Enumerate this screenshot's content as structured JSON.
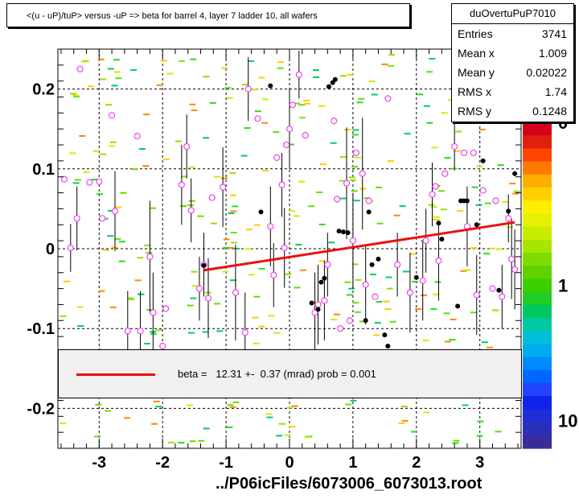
{
  "title": "<(u - uP)/tuP> versus  -uP => beta for barrel 4, layer 7 ladder 10, all wafers",
  "stats": {
    "name": "duOvertuPuP7010",
    "rows": [
      {
        "key": "Entries",
        "value": "3741"
      },
      {
        "key": "Mean x",
        "value": "1.009"
      },
      {
        "key": "Mean y",
        "value": "0.02022"
      },
      {
        "key": "RMS x",
        "value": "1.74"
      },
      {
        "key": "RMS y",
        "value": "0.1248"
      }
    ]
  },
  "legend": {
    "text": "beta =   12.31 +-  0.37 (mrad) prob = 0.001",
    "color": "#e8120f"
  },
  "footer": "../P06icFiles/6073006_6073013.root",
  "colors": {
    "fit": "#e8120f",
    "profile_marker": "#ee44ee",
    "dots": "#000000"
  },
  "chart_data": {
    "type": "scatter",
    "xlim": [
      -3.65,
      3.65
    ],
    "ylim": [
      -0.25,
      0.25
    ],
    "x_ticks": [
      -3,
      -2,
      -1,
      0,
      1,
      2,
      3
    ],
    "x_tick_labels": [
      "-3",
      "-2",
      "-1",
      "0",
      "1",
      "2",
      "3"
    ],
    "y_ticks": [
      -0.2,
      -0.1,
      0,
      0.1,
      0.2
    ],
    "y_tick_labels": [
      "-0.2",
      "-0.1",
      "0",
      "0.1",
      "0.2"
    ],
    "grid": true,
    "colz_labels": [
      {
        "text": "0",
        "y": 0.7
      },
      {
        "text": "1",
        "y": 0.0
      },
      {
        "text": "10",
        "y": -0.58
      }
    ],
    "fit_line": {
      "x": [
        -1.35,
        3.55
      ],
      "y": [
        -0.027,
        0.033
      ]
    },
    "profile_points": [
      {
        "x": -3.55,
        "y": 0.087
      },
      {
        "x": -3.45,
        "y": 0.001,
        "err": 0.03
      },
      {
        "x": -3.35,
        "y": 0.038,
        "err": 0.04
      },
      {
        "x": -3.3,
        "y": 0.225
      },
      {
        "x": -3.15,
        "y": 0.083
      },
      {
        "x": -3.0,
        "y": 0.084
      },
      {
        "x": -2.95,
        "y": 0.038
      },
      {
        "x": -2.8,
        "y": 0.167
      },
      {
        "x": -2.75,
        "y": 0.047,
        "err": 0.05
      },
      {
        "x": -2.55,
        "y": -0.103,
        "err": 0.05
      },
      {
        "x": -2.4,
        "y": 0.141
      },
      {
        "x": -2.35,
        "y": -0.103,
        "err": 0.05
      },
      {
        "x": -2.2,
        "y": -0.01,
        "err": 0.07
      },
      {
        "x": -2.15,
        "y": -0.08,
        "err": 0.05
      },
      {
        "x": -2.0,
        "y": -0.122
      },
      {
        "x": -1.95,
        "y": -0.075
      },
      {
        "x": -1.7,
        "y": 0.08,
        "err": 0.05
      },
      {
        "x": -1.62,
        "y": 0.128,
        "err": 0.04
      },
      {
        "x": -1.55,
        "y": 0.048,
        "err": 0.04
      },
      {
        "x": -1.42,
        "y": -0.05,
        "err": 0.04
      },
      {
        "x": -1.35,
        "y": -0.02,
        "err": 0.04
      },
      {
        "x": -1.28,
        "y": -0.062,
        "err": 0.05
      },
      {
        "x": -1.22,
        "y": 0.064
      },
      {
        "x": -1.05,
        "y": 0.077,
        "err": 0.05
      },
      {
        "x": -0.85,
        "y": -0.055,
        "err": 0.06
      },
      {
        "x": -0.7,
        "y": -0.105,
        "err": 0.05
      },
      {
        "x": -0.65,
        "y": 0.2,
        "err": 0.04
      },
      {
        "x": -0.5,
        "y": 0.163
      },
      {
        "x": -0.3,
        "y": 0.028,
        "err": 0.05
      },
      {
        "x": -0.25,
        "y": -0.033,
        "err": 0.04
      },
      {
        "x": -0.2,
        "y": 0.114
      },
      {
        "x": -0.12,
        "y": 0.08,
        "err": 0.04
      },
      {
        "x": -0.08,
        "y": 0.001,
        "err": 0.05
      },
      {
        "x": -0.05,
        "y": 0.13
      },
      {
        "x": 0.0,
        "y": 0.15,
        "err": 0.05
      },
      {
        "x": 0.05,
        "y": 0.18
      },
      {
        "x": 0.15,
        "y": 0.218,
        "err": 0.03
      },
      {
        "x": 0.25,
        "y": 0.142
      },
      {
        "x": 0.4,
        "y": -0.08,
        "err": 0.05
      },
      {
        "x": 0.45,
        "y": -0.07,
        "err": 0.05
      },
      {
        "x": 0.55,
        "y": -0.065,
        "err": 0.05
      },
      {
        "x": 0.6,
        "y": -0.02,
        "err": 0.04
      },
      {
        "x": 0.7,
        "y": 0.16
      },
      {
        "x": 0.75,
        "y": 0.062
      },
      {
        "x": 0.8,
        "y": -0.1
      },
      {
        "x": 0.9,
        "y": 0.082,
        "err": 0.07
      },
      {
        "x": 0.95,
        "y": -0.09
      },
      {
        "x": 1.0,
        "y": 0.01,
        "err": 0.06
      },
      {
        "x": 1.05,
        "y": 0.12
      },
      {
        "x": 1.15,
        "y": 0.094,
        "err": 0.07
      },
      {
        "x": 1.2,
        "y": -0.045,
        "err": 0.05
      },
      {
        "x": 1.25,
        "y": 0.06
      },
      {
        "x": 1.35,
        "y": -0.06
      },
      {
        "x": 1.55,
        "y": 0.188
      },
      {
        "x": 1.7,
        "y": -0.02,
        "err": 0.04
      },
      {
        "x": 1.9,
        "y": -0.055,
        "err": 0.05
      },
      {
        "x": 2.1,
        "y": -0.04,
        "err": 0.05
      },
      {
        "x": 2.15,
        "y": 0.01,
        "err": 0.04
      },
      {
        "x": 2.25,
        "y": 0.068,
        "err": 0.04
      },
      {
        "x": 2.3,
        "y": 0.078
      },
      {
        "x": 2.35,
        "y": -0.015,
        "err": 0.05
      },
      {
        "x": 2.45,
        "y": 0.094
      },
      {
        "x": 2.6,
        "y": 0.128,
        "err": 0.03
      },
      {
        "x": 2.65,
        "y": 0.168
      },
      {
        "x": 2.75,
        "y": 0.12
      },
      {
        "x": 2.8,
        "y": 0.028,
        "err": 0.05
      },
      {
        "x": 2.9,
        "y": 0.12
      },
      {
        "x": 2.95,
        "y": -0.058,
        "err": 0.05
      },
      {
        "x": 3.0,
        "y": 0.208
      },
      {
        "x": 3.05,
        "y": 0.073
      },
      {
        "x": 3.2,
        "y": -0.05
      },
      {
        "x": 3.25,
        "y": 0.06
      },
      {
        "x": 3.35,
        "y": -0.06,
        "err": 0.04
      },
      {
        "x": 3.45,
        "y": 0.038,
        "err": 0.03
      },
      {
        "x": 3.5,
        "y": -0.013,
        "err": 0.05
      },
      {
        "x": 3.55,
        "y": -0.026,
        "err": 0.05
      }
    ],
    "black_points": [
      {
        "x": -1.35,
        "y": -0.021
      },
      {
        "x": -0.45,
        "y": 0.046
      },
      {
        "x": -0.3,
        "y": 0.204
      },
      {
        "x": 0.35,
        "y": -0.068
      },
      {
        "x": 0.45,
        "y": -0.076
      },
      {
        "x": 0.5,
        "y": -0.042
      },
      {
        "x": 0.55,
        "y": -0.037
      },
      {
        "x": 0.62,
        "y": 0.203
      },
      {
        "x": 0.68,
        "y": 0.208
      },
      {
        "x": 0.72,
        "y": 0.212
      },
      {
        "x": 0.78,
        "y": 0.022
      },
      {
        "x": 0.85,
        "y": 0.021
      },
      {
        "x": 0.92,
        "y": 0.02
      },
      {
        "x": 1.2,
        "y": -0.09
      },
      {
        "x": 1.25,
        "y": 0.046
      },
      {
        "x": 1.3,
        "y": -0.02
      },
      {
        "x": 1.4,
        "y": -0.013
      },
      {
        "x": 1.5,
        "y": -0.108
      },
      {
        "x": 1.55,
        "y": -0.122
      },
      {
        "x": 2.0,
        "y": -0.036
      },
      {
        "x": 2.35,
        "y": 0.032
      },
      {
        "x": 2.4,
        "y": 0.012
      },
      {
        "x": 2.65,
        "y": -0.072
      },
      {
        "x": 2.7,
        "y": 0.06
      },
      {
        "x": 2.75,
        "y": 0.06
      },
      {
        "x": 2.8,
        "y": 0.06
      },
      {
        "x": 2.95,
        "y": 0.03
      },
      {
        "x": 3.05,
        "y": 0.11
      },
      {
        "x": 3.3,
        "y": -0.052
      },
      {
        "x": 3.45,
        "y": 0.047
      },
      {
        "x": 3.55,
        "y": 0.094
      }
    ]
  }
}
